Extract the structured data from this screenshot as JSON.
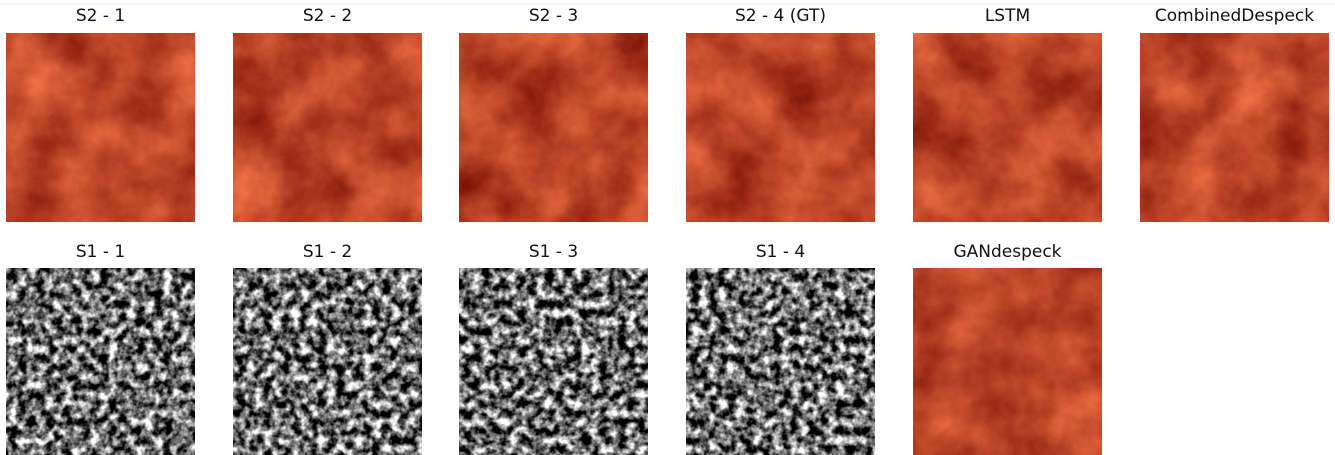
{
  "rows": [
    {
      "panels": [
        {
          "title": "S2 - 1"
        },
        {
          "title": "S2 - 2"
        },
        {
          "title": "S2 - 3"
        },
        {
          "title": "S2 - 4 (GT)"
        },
        {
          "title": "LSTM"
        },
        {
          "title": "CombinedDespeck"
        }
      ]
    },
    {
      "panels": [
        {
          "title": "S1 - 1"
        },
        {
          "title": "S1 - 2"
        },
        {
          "title": "S1 - 3"
        },
        {
          "title": "S1 - 4"
        },
        {
          "title": "GANdespeck"
        }
      ]
    }
  ]
}
